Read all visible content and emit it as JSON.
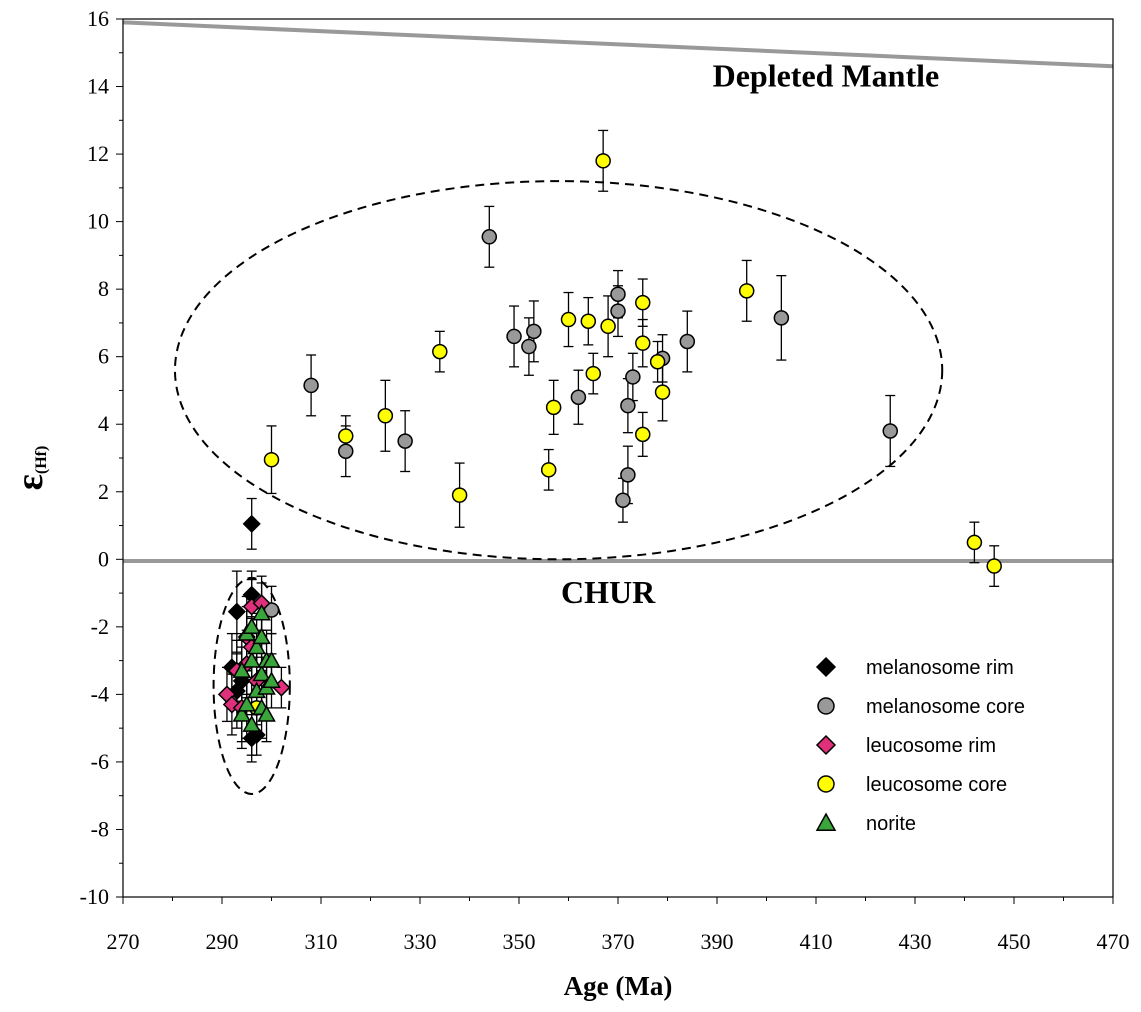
{
  "chart_data": {
    "type": "scatter",
    "xlabel": "Age (Ma)",
    "ylabel": "ε(Hf)",
    "xlim": [
      270,
      470
    ],
    "ylim": [
      -10,
      16
    ],
    "xticks": [
      270,
      290,
      310,
      330,
      350,
      370,
      390,
      410,
      430,
      450,
      470
    ],
    "yticks": [
      16,
      14,
      12,
      10,
      8,
      6,
      4,
      2,
      0,
      -2,
      -4,
      -6,
      -8,
      -10
    ],
    "grid": false,
    "legend_position": "right",
    "annotations": [
      {
        "text": "Depleted Mantle",
        "x": 412,
        "y": 14.0
      },
      {
        "text": "CHUR",
        "x": 368,
        "y": -1.3
      }
    ],
    "reference_lines": [
      {
        "name": "Depleted Mantle",
        "x": [
          270,
          470
        ],
        "y": [
          15.9,
          14.6
        ],
        "color": "#999999"
      },
      {
        "name": "CHUR",
        "x": [
          270,
          470
        ],
        "y": [
          -0.05,
          -0.05
        ],
        "color": "#999999"
      }
    ],
    "ellipses": [
      {
        "cx": 358,
        "cy": 5.6,
        "rx": 77.5,
        "ry": 5.6
      },
      {
        "cx": 296,
        "cy": -3.75,
        "rx": 7.7,
        "ry": 3.2
      }
    ],
    "series": [
      {
        "name": "melanosome rim",
        "marker": "diamond",
        "color": "#000000",
        "points": [
          {
            "x": 296,
            "y": 1.05,
            "err": 0.75
          },
          {
            "x": 296,
            "y": -1.05,
            "err": 0.7
          },
          {
            "x": 293,
            "y": -1.55,
            "err": 1.2
          },
          {
            "x": 292,
            "y": -3.2,
            "err": 1.0
          },
          {
            "x": 294,
            "y": -3.6,
            "err": 1.0
          },
          {
            "x": 295,
            "y": -3.1,
            "err": 1.0
          },
          {
            "x": 293,
            "y": -3.9,
            "err": 1.1
          },
          {
            "x": 296,
            "y": -5.3,
            "err": 0.7
          },
          {
            "x": 297,
            "y": -5.2,
            "err": 0.6
          }
        ]
      },
      {
        "name": "melanosome core",
        "marker": "circle",
        "color": "#999999",
        "points": [
          {
            "x": 308,
            "y": 5.15,
            "err": 0.9
          },
          {
            "x": 315,
            "y": 3.2,
            "err": 0.75
          },
          {
            "x": 327,
            "y": 3.5,
            "err": 0.9
          },
          {
            "x": 344,
            "y": 9.55,
            "err": 0.9
          },
          {
            "x": 349,
            "y": 6.6,
            "err": 0.9
          },
          {
            "x": 352,
            "y": 6.3,
            "err": 0.85
          },
          {
            "x": 353,
            "y": 6.75,
            "err": 0.9
          },
          {
            "x": 362,
            "y": 4.8,
            "err": 0.8
          },
          {
            "x": 370,
            "y": 7.85,
            "err": 0.7
          },
          {
            "x": 370,
            "y": 7.35,
            "err": 0.75
          },
          {
            "x": 371,
            "y": 1.75,
            "err": 0.65
          },
          {
            "x": 372,
            "y": 2.5,
            "err": 0.85
          },
          {
            "x": 372,
            "y": 4.55,
            "err": 0.8
          },
          {
            "x": 373,
            "y": 5.4,
            "err": 0.7
          },
          {
            "x": 379,
            "y": 5.95,
            "err": 0.7
          },
          {
            "x": 384,
            "y": 6.45,
            "err": 0.9
          },
          {
            "x": 403,
            "y": 7.15,
            "err": 1.25
          },
          {
            "x": 425,
            "y": 3.8,
            "err": 1.05
          },
          {
            "x": 300,
            "y": -1.5,
            "err": 0.7
          }
        ]
      },
      {
        "name": "leucosome rim",
        "marker": "diamond",
        "color": "#e0307c",
        "points": [
          {
            "x": 291,
            "y": -4.0,
            "err": 0.8
          },
          {
            "x": 292,
            "y": -4.3,
            "err": 0.9
          },
          {
            "x": 293,
            "y": -3.3,
            "err": 0.9
          },
          {
            "x": 294,
            "y": -4.4,
            "err": 1.0
          },
          {
            "x": 295,
            "y": -3.1,
            "err": 0.9
          },
          {
            "x": 295,
            "y": -2.3,
            "err": 0.9
          },
          {
            "x": 296,
            "y": -1.4,
            "err": 0.8
          },
          {
            "x": 296,
            "y": -2.6,
            "err": 0.9
          },
          {
            "x": 297,
            "y": -3.6,
            "err": 0.9
          },
          {
            "x": 298,
            "y": -1.3,
            "err": 0.8
          },
          {
            "x": 302,
            "y": -3.8,
            "err": 0.6
          }
        ]
      },
      {
        "name": "leucosome core",
        "marker": "circle",
        "color": "#ffff00",
        "points": [
          {
            "x": 300,
            "y": 2.95,
            "err": 1.0
          },
          {
            "x": 315,
            "y": 3.65,
            "err": 0.6
          },
          {
            "x": 323,
            "y": 4.25,
            "err": 1.05
          },
          {
            "x": 334,
            "y": 6.15,
            "err": 0.6
          },
          {
            "x": 338,
            "y": 1.9,
            "err": 0.95
          },
          {
            "x": 356,
            "y": 2.65,
            "err": 0.6
          },
          {
            "x": 357,
            "y": 4.5,
            "err": 0.8
          },
          {
            "x": 360,
            "y": 7.1,
            "err": 0.8
          },
          {
            "x": 364,
            "y": 7.05,
            "err": 0.7
          },
          {
            "x": 365,
            "y": 5.5,
            "err": 0.6
          },
          {
            "x": 367,
            "y": 11.8,
            "err": 0.9
          },
          {
            "x": 368,
            "y": 6.9,
            "err": 0.9
          },
          {
            "x": 375,
            "y": 7.6,
            "err": 0.7
          },
          {
            "x": 375,
            "y": 6.4,
            "err": 0.7
          },
          {
            "x": 375,
            "y": 3.7,
            "err": 0.65
          },
          {
            "x": 378,
            "y": 5.85,
            "err": 0.6
          },
          {
            "x": 379,
            "y": 4.95,
            "err": 0.85
          },
          {
            "x": 396,
            "y": 7.95,
            "err": 0.9
          },
          {
            "x": 442,
            "y": 0.5,
            "err": 0.6
          },
          {
            "x": 446,
            "y": -0.2,
            "err": 0.6
          },
          {
            "x": 297,
            "y": -4.4,
            "err": 0.8
          }
        ]
      },
      {
        "name": "norite",
        "marker": "triangle",
        "color": "#3aa53a",
        "points": [
          {
            "x": 294,
            "y": -4.6,
            "err": 1.0
          },
          {
            "x": 294,
            "y": -3.3,
            "err": 1.1
          },
          {
            "x": 295,
            "y": -2.2,
            "err": 1.1
          },
          {
            "x": 295,
            "y": -4.3,
            "err": 1.0
          },
          {
            "x": 296,
            "y": -3.0,
            "err": 1.0
          },
          {
            "x": 296,
            "y": -2.0,
            "err": 1.0
          },
          {
            "x": 296,
            "y": -4.9,
            "err": 0.9
          },
          {
            "x": 297,
            "y": -3.9,
            "err": 1.0
          },
          {
            "x": 297,
            "y": -2.6,
            "err": 1.0
          },
          {
            "x": 298,
            "y": -1.6,
            "err": 0.9
          },
          {
            "x": 298,
            "y": -2.3,
            "err": 1.0
          },
          {
            "x": 298,
            "y": -3.4,
            "err": 1.0
          },
          {
            "x": 298,
            "y": -4.4,
            "err": 0.9
          },
          {
            "x": 299,
            "y": -3.0,
            "err": 0.9
          },
          {
            "x": 299,
            "y": -3.8,
            "err": 0.9
          },
          {
            "x": 300,
            "y": -3.0,
            "err": 0.8
          },
          {
            "x": 300,
            "y": -3.6,
            "err": 0.8
          },
          {
            "x": 299,
            "y": -4.6,
            "err": 0.8
          }
        ]
      }
    ]
  }
}
